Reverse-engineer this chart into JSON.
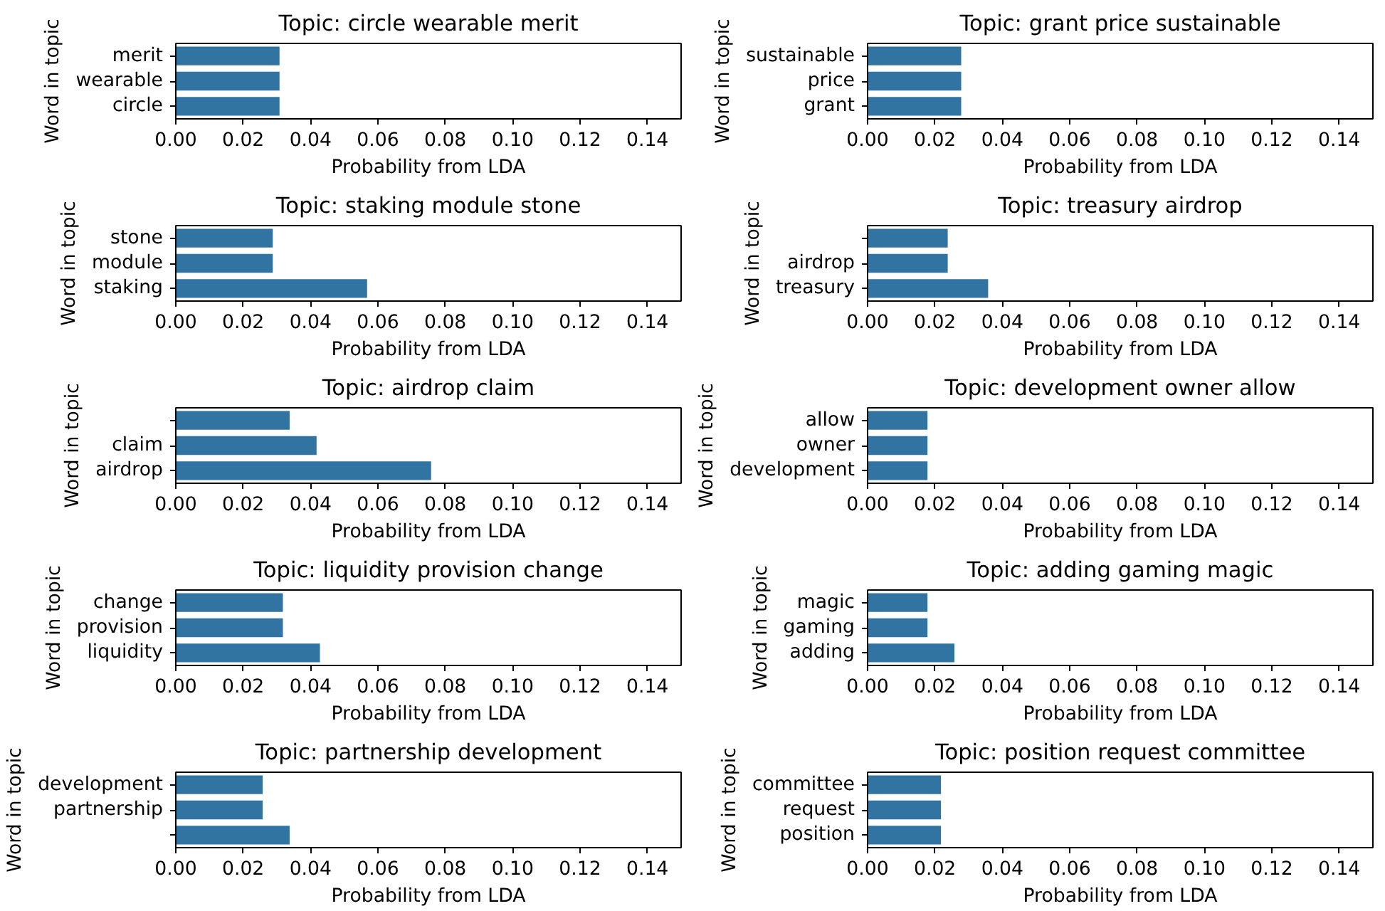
{
  "chart_data": [
    {
      "type": "bar",
      "orientation": "horizontal",
      "title": "Topic: circle wearable merit",
      "xlabel": "Probability from LDA",
      "ylabel": "Word in topic",
      "categories": [
        "merit",
        "wearable",
        "circle"
      ],
      "values": [
        0.031,
        0.031,
        0.031
      ],
      "color": "#3274a1",
      "xlim": [
        0,
        0.15
      ],
      "xticks": [
        {
          "value": 0,
          "label": "0.00"
        },
        {
          "value": 0.02,
          "label": "0.02"
        },
        {
          "value": 0.04,
          "label": "0.04"
        },
        {
          "value": 0.06,
          "label": "0.06"
        },
        {
          "value": 0.08,
          "label": "0.08"
        },
        {
          "value": 0.1,
          "label": "0.10"
        },
        {
          "value": 0.12,
          "label": "0.12"
        },
        {
          "value": 0.14,
          "label": "0.14"
        }
      ],
      "grid": false
    },
    {
      "type": "bar",
      "orientation": "horizontal",
      "title": "Topic: grant price sustainable",
      "xlabel": "Probability from LDA",
      "ylabel": "Word in topic",
      "categories": [
        "sustainable",
        "price",
        "grant"
      ],
      "values": [
        0.028,
        0.028,
        0.028
      ],
      "color": "#3274a1",
      "xlim": [
        0,
        0.15
      ],
      "xticks": [
        {
          "value": 0,
          "label": "0.00"
        },
        {
          "value": 0.02,
          "label": "0.02"
        },
        {
          "value": 0.04,
          "label": "0.04"
        },
        {
          "value": 0.06,
          "label": "0.06"
        },
        {
          "value": 0.08,
          "label": "0.08"
        },
        {
          "value": 0.1,
          "label": "0.10"
        },
        {
          "value": 0.12,
          "label": "0.12"
        },
        {
          "value": 0.14,
          "label": "0.14"
        }
      ],
      "grid": false
    },
    {
      "type": "bar",
      "orientation": "horizontal",
      "title": "Topic: staking module stone",
      "xlabel": "Probability from LDA",
      "ylabel": "Word in topic",
      "categories": [
        "stone",
        "module",
        "staking"
      ],
      "values": [
        0.029,
        0.029,
        0.057
      ],
      "color": "#3274a1",
      "xlim": [
        0,
        0.15
      ],
      "xticks": [
        {
          "value": 0,
          "label": "0.00"
        },
        {
          "value": 0.02,
          "label": "0.02"
        },
        {
          "value": 0.04,
          "label": "0.04"
        },
        {
          "value": 0.06,
          "label": "0.06"
        },
        {
          "value": 0.08,
          "label": "0.08"
        },
        {
          "value": 0.1,
          "label": "0.10"
        },
        {
          "value": 0.12,
          "label": "0.12"
        },
        {
          "value": 0.14,
          "label": "0.14"
        }
      ],
      "grid": false
    },
    {
      "type": "bar",
      "orientation": "horizontal",
      "title": "Topic: treasury airdrop",
      "xlabel": "Probability from LDA",
      "ylabel": "Word in topic",
      "categories": [
        null,
        "airdrop",
        "treasury"
      ],
      "values": [
        0.024,
        0.024,
        0.036
      ],
      "color": "#3274a1",
      "xlim": [
        0,
        0.15
      ],
      "xticks": [
        {
          "value": 0,
          "label": "0.00"
        },
        {
          "value": 0.02,
          "label": "0.02"
        },
        {
          "value": 0.04,
          "label": "0.04"
        },
        {
          "value": 0.06,
          "label": "0.06"
        },
        {
          "value": 0.08,
          "label": "0.08"
        },
        {
          "value": 0.1,
          "label": "0.10"
        },
        {
          "value": 0.12,
          "label": "0.12"
        },
        {
          "value": 0.14,
          "label": "0.14"
        }
      ],
      "grid": false
    },
    {
      "type": "bar",
      "orientation": "horizontal",
      "title": "Topic: airdrop claim",
      "xlabel": "Probability from LDA",
      "ylabel": "Word in topic",
      "categories": [
        null,
        "claim",
        "airdrop"
      ],
      "values": [
        0.034,
        0.042,
        0.076
      ],
      "color": "#3274a1",
      "xlim": [
        0,
        0.15
      ],
      "xticks": [
        {
          "value": 0,
          "label": "0.00"
        },
        {
          "value": 0.02,
          "label": "0.02"
        },
        {
          "value": 0.04,
          "label": "0.04"
        },
        {
          "value": 0.06,
          "label": "0.06"
        },
        {
          "value": 0.08,
          "label": "0.08"
        },
        {
          "value": 0.1,
          "label": "0.10"
        },
        {
          "value": 0.12,
          "label": "0.12"
        },
        {
          "value": 0.14,
          "label": "0.14"
        }
      ],
      "grid": false
    },
    {
      "type": "bar",
      "orientation": "horizontal",
      "title": "Topic: development owner allow",
      "xlabel": "Probability from LDA",
      "ylabel": "Word in topic",
      "categories": [
        "allow",
        "owner",
        "development"
      ],
      "values": [
        0.018,
        0.018,
        0.018
      ],
      "color": "#3274a1",
      "xlim": [
        0,
        0.15
      ],
      "xticks": [
        {
          "value": 0,
          "label": "0.00"
        },
        {
          "value": 0.02,
          "label": "0.02"
        },
        {
          "value": 0.04,
          "label": "0.04"
        },
        {
          "value": 0.06,
          "label": "0.06"
        },
        {
          "value": 0.08,
          "label": "0.08"
        },
        {
          "value": 0.1,
          "label": "0.10"
        },
        {
          "value": 0.12,
          "label": "0.12"
        },
        {
          "value": 0.14,
          "label": "0.14"
        }
      ],
      "grid": false
    },
    {
      "type": "bar",
      "orientation": "horizontal",
      "title": "Topic: liquidity provision change",
      "xlabel": "Probability from LDA",
      "ylabel": "Word in topic",
      "categories": [
        "change",
        "provision",
        "liquidity"
      ],
      "values": [
        0.032,
        0.032,
        0.043
      ],
      "color": "#3274a1",
      "xlim": [
        0,
        0.15
      ],
      "xticks": [
        {
          "value": 0,
          "label": "0.00"
        },
        {
          "value": 0.02,
          "label": "0.02"
        },
        {
          "value": 0.04,
          "label": "0.04"
        },
        {
          "value": 0.06,
          "label": "0.06"
        },
        {
          "value": 0.08,
          "label": "0.08"
        },
        {
          "value": 0.1,
          "label": "0.10"
        },
        {
          "value": 0.12,
          "label": "0.12"
        },
        {
          "value": 0.14,
          "label": "0.14"
        }
      ],
      "grid": false
    },
    {
      "type": "bar",
      "orientation": "horizontal",
      "title": "Topic: adding gaming magic",
      "xlabel": "Probability from LDA",
      "ylabel": "Word in topic",
      "categories": [
        "magic",
        "gaming",
        "adding"
      ],
      "values": [
        0.018,
        0.018,
        0.026
      ],
      "color": "#3274a1",
      "xlim": [
        0,
        0.15
      ],
      "xticks": [
        {
          "value": 0,
          "label": "0.00"
        },
        {
          "value": 0.02,
          "label": "0.02"
        },
        {
          "value": 0.04,
          "label": "0.04"
        },
        {
          "value": 0.06,
          "label": "0.06"
        },
        {
          "value": 0.08,
          "label": "0.08"
        },
        {
          "value": 0.1,
          "label": "0.10"
        },
        {
          "value": 0.12,
          "label": "0.12"
        },
        {
          "value": 0.14,
          "label": "0.14"
        }
      ],
      "grid": false
    },
    {
      "type": "bar",
      "orientation": "horizontal",
      "title": "Topic: partnership development",
      "xlabel": "Probability from LDA",
      "ylabel": "Word in topic",
      "categories": [
        "development",
        "partnership",
        null
      ],
      "values": [
        0.026,
        0.026,
        0.034
      ],
      "color": "#3274a1",
      "xlim": [
        0,
        0.15
      ],
      "xticks": [
        {
          "value": 0,
          "label": "0.00"
        },
        {
          "value": 0.02,
          "label": "0.02"
        },
        {
          "value": 0.04,
          "label": "0.04"
        },
        {
          "value": 0.06,
          "label": "0.06"
        },
        {
          "value": 0.08,
          "label": "0.08"
        },
        {
          "value": 0.1,
          "label": "0.10"
        },
        {
          "value": 0.12,
          "label": "0.12"
        },
        {
          "value": 0.14,
          "label": "0.14"
        }
      ],
      "grid": false
    },
    {
      "type": "bar",
      "orientation": "horizontal",
      "title": "Topic: position request committee",
      "xlabel": "Probability from LDA",
      "ylabel": "Word in topic",
      "categories": [
        "committee",
        "request",
        "position"
      ],
      "values": [
        0.022,
        0.022,
        0.022
      ],
      "color": "#3274a1",
      "xlim": [
        0,
        0.15
      ],
      "xticks": [
        {
          "value": 0,
          "label": "0.00"
        },
        {
          "value": 0.02,
          "label": "0.02"
        },
        {
          "value": 0.04,
          "label": "0.04"
        },
        {
          "value": 0.06,
          "label": "0.06"
        },
        {
          "value": 0.08,
          "label": "0.08"
        },
        {
          "value": 0.1,
          "label": "0.10"
        },
        {
          "value": 0.12,
          "label": "0.12"
        },
        {
          "value": 0.14,
          "label": "0.14"
        }
      ],
      "grid": false
    }
  ]
}
